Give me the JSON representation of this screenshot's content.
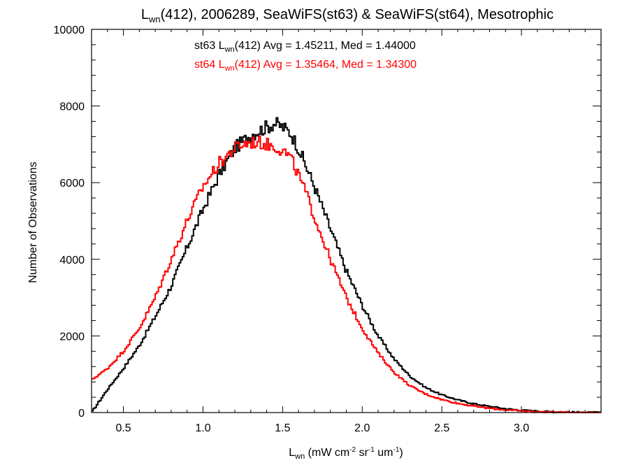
{
  "chart_data": {
    "type": "line",
    "title": {
      "main": "L",
      "sub": "wn",
      "rest": "(412), 2006289, SeaWiFS(st63) & SeaWiFS(st64), Mesotrophic"
    },
    "ylabel": "Number of Observations",
    "xlabel": {
      "main": "L",
      "sub": "wn",
      "unit_open": " (mW cm",
      "unit_sup1": "-2",
      "unit_mid1": " sr",
      "unit_sup2": "-1",
      "unit_mid2": " um",
      "unit_sup3": "-1",
      "unit_close": ")"
    },
    "xlim": [
      0.3,
      3.5
    ],
    "ylim": [
      0,
      10000
    ],
    "x_ticks": [
      {
        "value": 0.5,
        "label": "0.5"
      },
      {
        "value": 1.0,
        "label": "1.0"
      },
      {
        "value": 1.5,
        "label": "1.5"
      },
      {
        "value": 2.0,
        "label": "2.0"
      },
      {
        "value": 2.5,
        "label": "2.5"
      },
      {
        "value": 3.0,
        "label": "3.0"
      }
    ],
    "y_ticks": [
      {
        "value": 0,
        "label": "0"
      },
      {
        "value": 2000,
        "label": "2000"
      },
      {
        "value": 4000,
        "label": "4000"
      },
      {
        "value": 6000,
        "label": "6000"
      },
      {
        "value": 8000,
        "label": "8000"
      },
      {
        "value": 10000,
        "label": "10000"
      }
    ],
    "grid": false,
    "annotations": [
      {
        "prefix": "st63 L",
        "sub": "wn",
        "rest": "(412) Avg = 1.45211, Med = 1.44000",
        "color": "#000000"
      },
      {
        "prefix": "st64 L",
        "sub": "wn",
        "rest": "(412) Avg = 1.35464, Med = 1.34300",
        "color": "#ff0000"
      }
    ],
    "series": [
      {
        "color": "#000000",
        "style": "step",
        "x": [
          0.3,
          0.4,
          0.5,
          0.6,
          0.7,
          0.8,
          0.9,
          1.0,
          1.1,
          1.2,
          1.3,
          1.35,
          1.4,
          1.45,
          1.5,
          1.55,
          1.6,
          1.65,
          1.7,
          1.8,
          1.9,
          2.0,
          2.1,
          2.2,
          2.3,
          2.4,
          2.5,
          2.6,
          2.7,
          2.8,
          2.9,
          3.0,
          3.1,
          3.2,
          3.3,
          3.4,
          3.5
        ],
        "y": [
          0,
          600,
          1150,
          1750,
          2500,
          3300,
          4300,
          5300,
          6200,
          6900,
          7250,
          7350,
          7450,
          7550,
          7450,
          7300,
          6900,
          6400,
          5900,
          4800,
          3700,
          2800,
          2000,
          1400,
          950,
          650,
          460,
          330,
          230,
          160,
          100,
          60,
          35,
          18,
          8,
          3,
          0
        ]
      },
      {
        "color": "#ff0000",
        "style": "step",
        "x": [
          0.3,
          0.4,
          0.5,
          0.6,
          0.7,
          0.8,
          0.9,
          1.0,
          1.1,
          1.2,
          1.25,
          1.3,
          1.35,
          1.4,
          1.45,
          1.5,
          1.55,
          1.6,
          1.65,
          1.7,
          1.8,
          1.9,
          2.0,
          2.1,
          2.2,
          2.3,
          2.4,
          2.5,
          2.6,
          2.7,
          2.8,
          2.9,
          3.0,
          3.1,
          3.2,
          3.3,
          3.4,
          3.5
        ],
        "y": [
          850,
          1150,
          1600,
          2200,
          3000,
          4000,
          5000,
          5900,
          6500,
          6900,
          7000,
          7050,
          7050,
          7000,
          6950,
          6850,
          6650,
          6200,
          5700,
          5100,
          4000,
          3000,
          2200,
          1550,
          1050,
          700,
          480,
          340,
          240,
          170,
          110,
          70,
          40,
          20,
          10,
          4,
          1,
          0
        ]
      }
    ]
  }
}
